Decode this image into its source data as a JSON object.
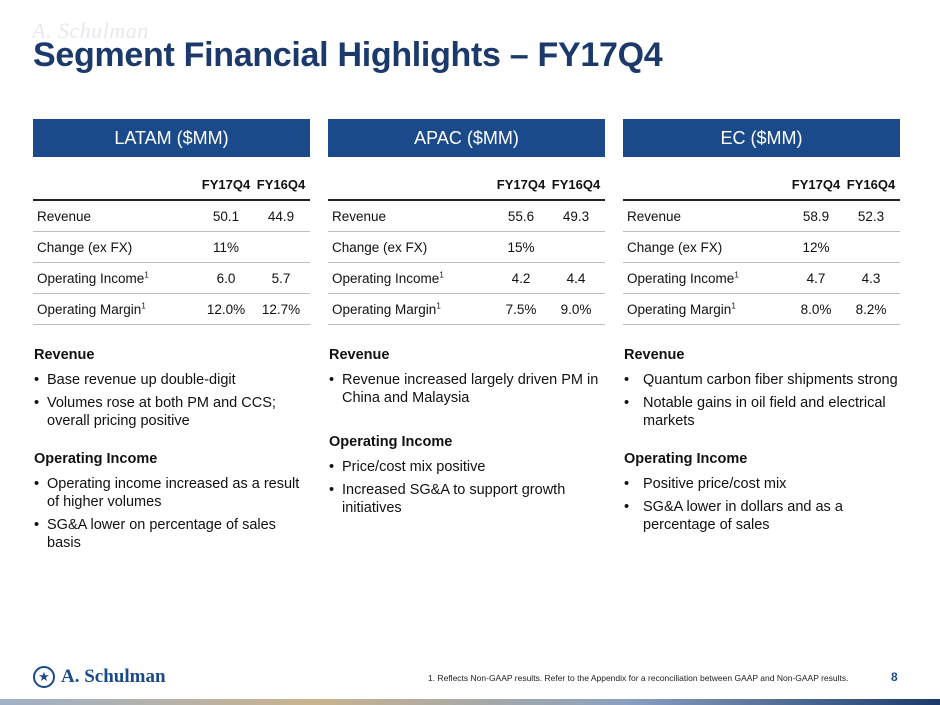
{
  "watermark": "A. Schulman",
  "title": "Segment Financial Highlights – FY17Q4",
  "colors": {
    "header_bg": "#1b4a8a",
    "title": "#1b3a6b"
  },
  "segments": [
    {
      "header": "LATAM ($MM)",
      "columns": [
        "FY17Q4",
        "FY16Q4"
      ],
      "rows": [
        {
          "label": "Revenue",
          "sup": "",
          "v1": "50.1",
          "v2": "44.9"
        },
        {
          "label": "Change (ex FX)",
          "sup": "",
          "v1": "11%",
          "v2": ""
        },
        {
          "label": "Operating Income",
          "sup": "1",
          "v1": "6.0",
          "v2": "5.7"
        },
        {
          "label": "Operating Margin",
          "sup": "1",
          "v1": "12.0%",
          "v2": "12.7%"
        }
      ],
      "notes": [
        {
          "title": "Revenue",
          "bullets": [
            "Base revenue up double-digit",
            "Volumes rose at both PM and CCS; overall pricing positive"
          ]
        },
        {
          "title": "Operating Income",
          "bullets": [
            "Operating income increased as a result of higher volumes",
            "SG&A lower on percentage of sales basis"
          ]
        }
      ]
    },
    {
      "header": "APAC ($MM)",
      "columns": [
        "FY17Q4",
        "FY16Q4"
      ],
      "rows": [
        {
          "label": "Revenue",
          "sup": "",
          "v1": "55.6",
          "v2": "49.3"
        },
        {
          "label": "Change (ex FX)",
          "sup": "",
          "v1": "15%",
          "v2": ""
        },
        {
          "label": "Operating Income",
          "sup": "1",
          "v1": "4.2",
          "v2": "4.4"
        },
        {
          "label": "Operating Margin",
          "sup": "1",
          "v1": "7.5%",
          "v2": "9.0%"
        }
      ],
      "notes": [
        {
          "title": "Revenue",
          "bullets": [
            "Revenue increased largely driven PM in China and Malaysia"
          ]
        },
        {
          "title": "Operating Income",
          "bullets": [
            "Price/cost mix positive",
            "Increased SG&A to support growth initiatives"
          ]
        }
      ]
    },
    {
      "header": "EC ($MM)",
      "columns": [
        "FY17Q4",
        "FY16Q4"
      ],
      "rows": [
        {
          "label": "Revenue",
          "sup": "",
          "v1": "58.9",
          "v2": "52.3"
        },
        {
          "label": "Change (ex FX)",
          "sup": "",
          "v1": "12%",
          "v2": ""
        },
        {
          "label": "Operating Income",
          "sup": "1",
          "v1": "4.7",
          "v2": "4.3"
        },
        {
          "label": "Operating Margin",
          "sup": "1",
          "v1": "8.0%",
          "v2": "8.2%"
        }
      ],
      "notes": [
        {
          "title": "Revenue",
          "bullets": [
            "Quantum carbon fiber shipments strong",
            "Notable gains in oil field and electrical markets"
          ]
        },
        {
          "title": "Operating Income",
          "bullets": [
            "Positive price/cost mix",
            "SG&A lower in dollars and as a percentage of sales"
          ]
        }
      ]
    }
  ],
  "footer": {
    "logo_text": "A. Schulman",
    "logo_icon": "figure-icon",
    "footnote": "1. Reflects Non-GAAP results. Refer to the Appendix for a reconciliation between GAAP and Non-GAAP results.",
    "page_number": "8"
  }
}
